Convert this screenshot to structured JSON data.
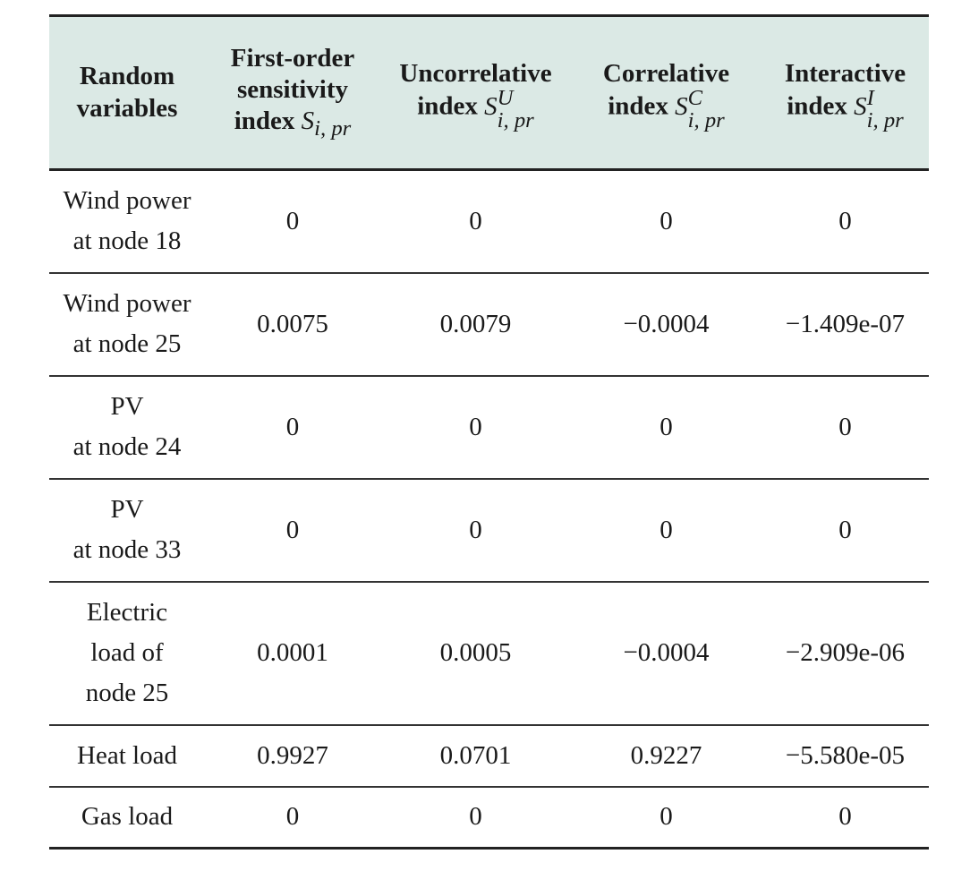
{
  "headers": {
    "col0": [
      "Random",
      "variables"
    ],
    "col1": {
      "lines": [
        "First-order",
        "sensitivity"
      ],
      "word": "index",
      "sym": "S",
      "sub": "i, pr"
    },
    "col2": {
      "lines": [
        "Uncorrelative"
      ],
      "word": "index",
      "sym": "S",
      "sup": "U",
      "sub": "i, pr"
    },
    "col3": {
      "lines": [
        "Correlative"
      ],
      "word": "index",
      "sym": "S",
      "sup": "C",
      "sub": "i, pr"
    },
    "col4": {
      "lines": [
        "Interactive"
      ],
      "word": "index",
      "sym": "S",
      "sup": "I",
      "sub": "i, pr"
    }
  },
  "rows": [
    {
      "label": [
        "Wind power",
        "at node 18"
      ],
      "height": 115,
      "values": [
        "0",
        "0",
        "0",
        "0"
      ]
    },
    {
      "label": [
        "Wind power",
        "at node 25"
      ],
      "height": 115,
      "values": [
        "0.0075",
        "0.0079",
        "−0.0004",
        "−1.409e-07"
      ]
    },
    {
      "label": [
        "PV",
        "at node 24"
      ],
      "height": 115,
      "values": [
        "0",
        "0",
        "0",
        "0"
      ]
    },
    {
      "label": [
        "PV",
        "at node 33"
      ],
      "height": 115,
      "values": [
        "0",
        "0",
        "0",
        "0"
      ]
    },
    {
      "label": [
        "Electric",
        "load of",
        "node 25"
      ],
      "height": 160,
      "values": [
        "0.0001",
        "0.0005",
        "−0.0004",
        "−2.909e-06"
      ]
    },
    {
      "label": [
        "Heat load"
      ],
      "height": 69,
      "values": [
        "0.9927",
        "0.0701",
        "0.9227",
        "−5.580e-05"
      ]
    },
    {
      "label": [
        "Gas load"
      ],
      "height": 69,
      "values": [
        "0",
        "0",
        "0",
        "0"
      ]
    }
  ]
}
